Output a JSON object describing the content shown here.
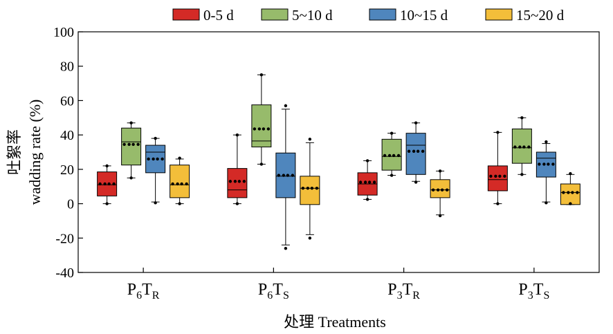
{
  "chart_data": {
    "type": "box",
    "xlabel": "处理  Treatments",
    "ylabel_cn": "吐絮率",
    "ylabel_en": "wadding rate (%)",
    "ylim": [
      -40,
      100
    ],
    "yticks": [
      -40,
      -20,
      0,
      20,
      40,
      60,
      80,
      100
    ],
    "legend_position": "top",
    "categories": [
      {
        "main": "P",
        "sub1": "6",
        "mid": "T",
        "sub2": "R"
      },
      {
        "main": "P",
        "sub1": "6",
        "mid": "T",
        "sub2": "S"
      },
      {
        "main": "P",
        "sub1": "3",
        "mid": "T",
        "sub2": "R"
      },
      {
        "main": "P",
        "sub1": "3",
        "mid": "T",
        "sub2": "S"
      }
    ],
    "series": [
      {
        "name": "0-5 d",
        "color": "#d42a26",
        "boxes": [
          {
            "min": 0,
            "q1": 4.5,
            "median": 11,
            "q3": 18.5,
            "max": 22,
            "mean": 11.5,
            "outliers": [
              22,
              0
            ]
          },
          {
            "min": 0,
            "q1": 3.5,
            "median": 8,
            "q3": 20.5,
            "max": 40,
            "mean": 13,
            "outliers": [
              40,
              0
            ]
          },
          {
            "min": 2.5,
            "q1": 5,
            "median": 11.5,
            "q3": 18,
            "max": 25,
            "mean": 12.5,
            "outliers": [
              25,
              2.5
            ]
          },
          {
            "min": 0,
            "q1": 7.5,
            "median": 14,
            "q3": 22,
            "max": 41.5,
            "mean": 16,
            "outliers": [
              41.5,
              0
            ]
          }
        ]
      },
      {
        "name": "5~10 d",
        "color": "#97bb6b",
        "boxes": [
          {
            "min": 15,
            "q1": 22.5,
            "median": 36,
            "q3": 44,
            "max": 47,
            "mean": 34.5,
            "outliers": [
              47,
              15
            ]
          },
          {
            "min": 23,
            "q1": 33,
            "median": 36.5,
            "q3": 57.5,
            "max": 75,
            "mean": 43.5,
            "outliers": [
              75,
              23
            ]
          },
          {
            "min": 16.5,
            "q1": 19.5,
            "median": 27.5,
            "q3": 37.5,
            "max": 41,
            "mean": 28,
            "outliers": [
              41,
              16.5
            ]
          },
          {
            "min": 17,
            "q1": 23.5,
            "median": 32.5,
            "q3": 43.5,
            "max": 50,
            "mean": 33,
            "outliers": [
              50,
              17
            ]
          }
        ]
      },
      {
        "name": "10~15 d",
        "color": "#4f86bd",
        "boxes": [
          {
            "min": 1,
            "q1": 18,
            "median": 30,
            "q3": 34,
            "max": 38,
            "mean": 26,
            "outliers": [
              38,
              0.5
            ]
          },
          {
            "min": -24,
            "q1": 3.5,
            "median": 16,
            "q3": 29.5,
            "max": 55,
            "mean": 16.5,
            "outliers": [
              57,
              -26
            ]
          },
          {
            "min": 13,
            "q1": 17,
            "median": 34,
            "q3": 41,
            "max": 47,
            "mean": 30.5,
            "outliers": [
              47,
              12.5
            ]
          },
          {
            "min": 1,
            "q1": 15.5,
            "median": 26.5,
            "q3": 30,
            "max": 35,
            "mean": 23,
            "outliers": [
              36,
              0.5
            ]
          }
        ]
      },
      {
        "name": "15~20 d",
        "color": "#f3be3a",
        "boxes": [
          {
            "min": 0,
            "q1": 3.5,
            "median": 11,
            "q3": 22.5,
            "max": 26,
            "mean": 11.5,
            "outliers": [
              26.5,
              0
            ]
          },
          {
            "min": -18,
            "q1": -0.5,
            "median": 9,
            "q3": 16,
            "max": 35.5,
            "mean": 9,
            "outliers": [
              37.5,
              -20
            ]
          },
          {
            "min": -6.5,
            "q1": 3.5,
            "median": 8,
            "q3": 14,
            "max": 19,
            "mean": 8,
            "outliers": [
              19,
              -7
            ]
          },
          {
            "min": -0.5,
            "q1": -0.5,
            "median": 6.5,
            "q3": 11.5,
            "max": 17,
            "mean": 6.5,
            "outliers": [
              17.5,
              0
            ]
          }
        ]
      }
    ]
  }
}
